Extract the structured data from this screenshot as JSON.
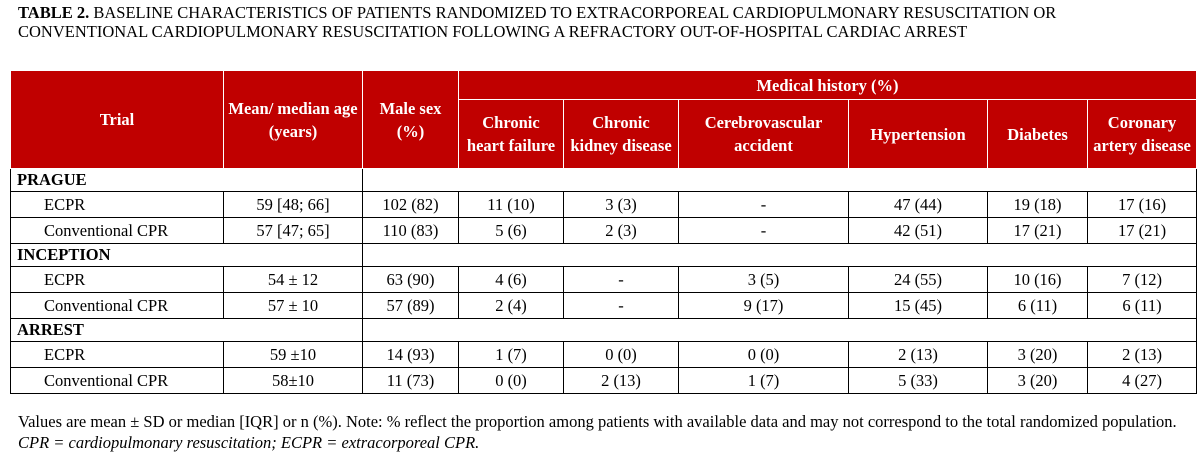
{
  "caption": {
    "label": "TABLE 2.",
    "text": "BASELINE CHARACTERISTICS OF PATIENTS RANDOMIZED TO EXTRACORPOREAL CARDIOPULMONARY RESUSCITATION OR CONVENTIONAL CARDIOPULMONARY RESUSCITATION FOLLOWING A REFRACTORY OUT-OF-HOSPITAL CARDIAC ARREST"
  },
  "headers": {
    "trial": "Trial",
    "age": "Mean/ median age (years)",
    "male": "Male sex (%)",
    "medical_history": "Medical history (%)",
    "chf": "Chronic heart failure",
    "ckd": "Chronic kidney disease",
    "cva": "Cerebrovascular accident",
    "htn": "Hypertension",
    "dm": "Diabetes",
    "cad": "Coronary artery disease"
  },
  "groups": [
    {
      "name": "PRAGUE",
      "rows": [
        {
          "trial": "ECPR",
          "age": "59 [48; 66]",
          "male": "102 (82)",
          "chf": "11 (10)",
          "ckd": "3 (3)",
          "cva": "-",
          "htn": "47 (44)",
          "dm": "19 (18)",
          "cad": "17 (16)"
        },
        {
          "trial": "Conventional CPR",
          "age": "57 [47; 65]",
          "male": "110 (83)",
          "chf": "5 (6)",
          "ckd": "2 (3)",
          "cva": "-",
          "htn": "42 (51)",
          "dm": "17 (21)",
          "cad": "17 (21)"
        }
      ]
    },
    {
      "name": "INCEPTION",
      "rows": [
        {
          "trial": "ECPR",
          "age": "54 ± 12",
          "male": "63 (90)",
          "chf": "4 (6)",
          "ckd": "-",
          "cva": "3 (5)",
          "htn": "24 (55)",
          "dm": "10 (16)",
          "cad": "7 (12)"
        },
        {
          "trial": "Conventional CPR",
          "age": "57 ± 10",
          "male": "57 (89)",
          "chf": "2 (4)",
          "ckd": "-",
          "cva": "9 (17)",
          "htn": "15 (45)",
          "dm": "6 (11)",
          "cad": "6 (11)"
        }
      ]
    },
    {
      "name": "ARREST",
      "rows": [
        {
          "trial": "ECPR",
          "age": "59 ±10",
          "male": "14 (93)",
          "chf": "1 (7)",
          "ckd": "0 (0)",
          "cva": "0 (0)",
          "htn": "2 (13)",
          "dm": "3 (20)",
          "cad": "2 (13)"
        },
        {
          "trial": "Conventional CPR",
          "age": "58±10",
          "male": "11 (73)",
          "chf": "0 (0)",
          "ckd": "2 (13)",
          "cva": "1 (7)",
          "htn": "5 (33)",
          "dm": "3 (20)",
          "cad": "4 (27)"
        }
      ]
    }
  ],
  "note": {
    "plain": "Values are mean ± SD or median [IQR] or n (%). Note: % reflect the proportion among patients with available data and may not correspond to the total randomized population.",
    "italic": "CPR = cardiopulmonary resuscitation; ECPR = extracorporeal CPR."
  },
  "colors": {
    "header_bg": "#c00000",
    "header_text": "#ffffff"
  }
}
